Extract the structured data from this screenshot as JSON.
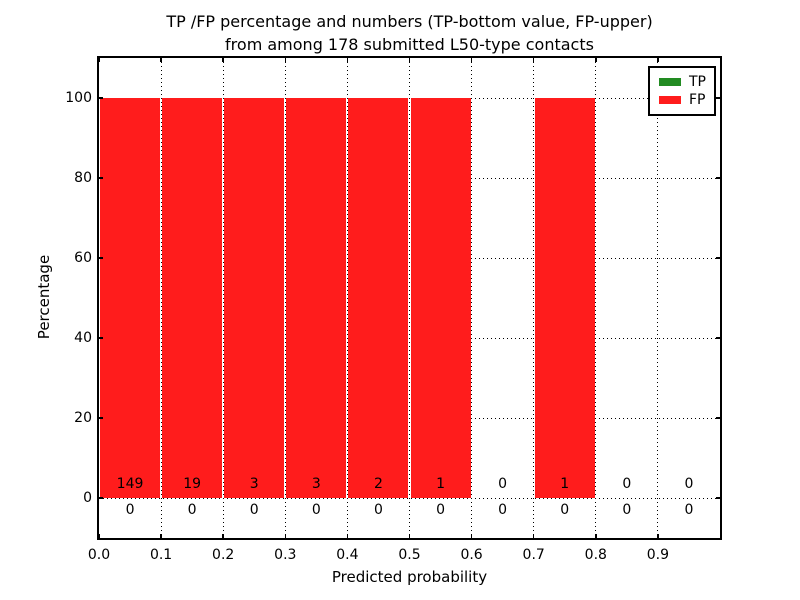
{
  "chart_data": {
    "type": "bar",
    "title": "TP /FP percentage and numbers (TP-bottom value, FP-upper)\nfrom among 178 submitted L50-type contacts",
    "title_lines": [
      "TP /FP percentage and numbers (TP-bottom value, FP-upper)",
      "from among 178 submitted L50-type contacts"
    ],
    "xlabel": "Predicted probability",
    "ylabel": "Percentage",
    "xlim": [
      0.0,
      1.0
    ],
    "ylim": [
      -10,
      110
    ],
    "x_tick_labels": [
      "0.0",
      "0.1",
      "0.2",
      "0.3",
      "0.4",
      "0.5",
      "0.6",
      "0.7",
      "0.8",
      "0.9"
    ],
    "y_tick_labels": [
      "0",
      "20",
      "40",
      "60",
      "80",
      "100"
    ],
    "grid": "dotted",
    "bins": {
      "edges": [
        0.0,
        0.1,
        0.2,
        0.3,
        0.4,
        0.5,
        0.6,
        0.7,
        0.8,
        0.9,
        1.0
      ]
    },
    "series": [
      {
        "name": "TP",
        "color": "#228b22",
        "counts": [
          0,
          0,
          0,
          0,
          0,
          0,
          0,
          0,
          0,
          0
        ],
        "pct": [
          0,
          0,
          0,
          0,
          0,
          0,
          0,
          0,
          0,
          0
        ]
      },
      {
        "name": "FP",
        "color": "#ff1c1c",
        "counts": [
          149,
          19,
          3,
          3,
          2,
          1,
          0,
          1,
          0,
          0
        ],
        "pct": [
          100,
          100,
          100,
          100,
          100,
          100,
          0,
          100,
          0,
          0
        ]
      }
    ],
    "legend": {
      "position": "upper right",
      "entries": [
        {
          "label": "TP",
          "color": "#228b22"
        },
        {
          "label": "FP",
          "color": "#ff1c1c"
        }
      ]
    }
  }
}
